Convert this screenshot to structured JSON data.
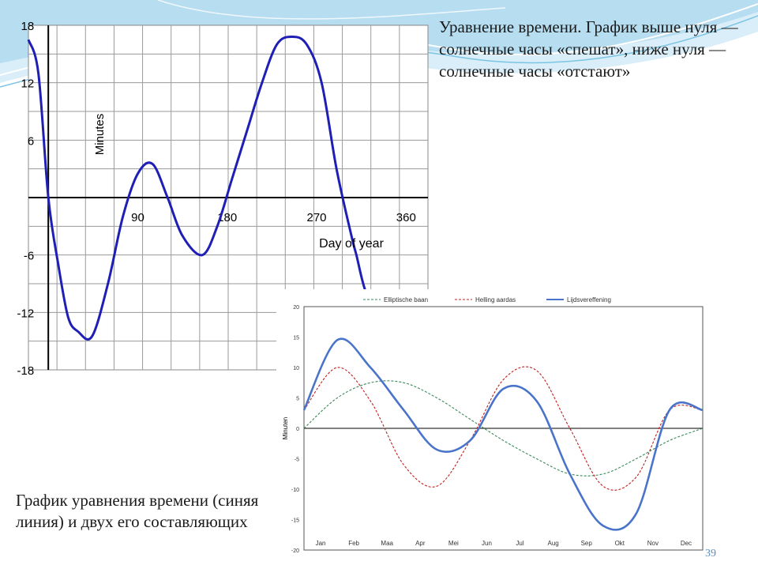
{
  "slide": {
    "caption_top": "Уравнение времени. График выше нуля — солнечные часы «спешат», ниже нуля — солнечные часы «отстают»",
    "caption_bottom": "График уравнения времени (синяя линия) и двух его составляющих",
    "slide_number": "39",
    "colors": {
      "wave_light": "#bfe3f2",
      "wave_mid": "#7cc4e4",
      "accent_blue": "#5a8fbf"
    }
  },
  "chart_data": [
    {
      "type": "line",
      "title": "",
      "xlabel": "Day of year",
      "ylabel": "Minutes",
      "xlim": [
        -20,
        382
      ],
      "ylim": [
        -18,
        18
      ],
      "x_ticks": [
        90,
        180,
        270,
        360
      ],
      "x_tick_labels": [
        "90",
        "180",
        "270",
        "360"
      ],
      "y_ticks": [
        18,
        12,
        6,
        -6,
        -12,
        -18
      ],
      "y_tick_labels": [
        "18",
        "12",
        "6",
        "-6",
        "-12",
        "-18"
      ],
      "grid": true,
      "line_color": "#1f1fb5",
      "series": [
        {
          "name": "",
          "x": [
            -20,
            -10,
            0,
            10,
            20,
            30,
            44,
            60,
            75,
            90,
            105,
            120,
            135,
            155,
            170,
            185,
            200,
            215,
            230,
            245,
            260,
            275,
            290,
            305,
            310,
            320,
            335,
            350,
            362,
            375
          ],
          "y": [
            16.5,
            13,
            0,
            -7,
            -12.5,
            -14,
            -14.5,
            -9,
            -2,
            2.5,
            3.5,
            0,
            -4,
            -6,
            -3,
            2,
            7,
            12,
            16,
            16.8,
            16,
            12,
            3,
            -4,
            -6,
            -10,
            -12,
            -13.5,
            -14,
            -13
          ]
        }
      ]
    },
    {
      "type": "line",
      "title": "",
      "xlabel": "",
      "ylabel": "Minuten",
      "ylim": [
        -20,
        20
      ],
      "y_ticks": [
        20,
        15,
        10,
        5,
        0,
        -5,
        -10,
        -15,
        -20
      ],
      "y_tick_labels": [
        "20",
        "15",
        "10",
        "5",
        "0",
        "-5",
        "-10",
        "-15",
        "-20"
      ],
      "categories": [
        "Jan",
        "Feb",
        "Maa",
        "Apr",
        "Mei",
        "Jun",
        "Jul",
        "Aug",
        "Sep",
        "Okt",
        "Nov",
        "Dec"
      ],
      "legend_position": "top",
      "grid": false,
      "series": [
        {
          "name": "Elliptische baan",
          "color": "#3a8a5a",
          "style": "dashed",
          "x": [
            0,
            1,
            2,
            3,
            4,
            5,
            6,
            7,
            8,
            9,
            10,
            11,
            12
          ],
          "y": [
            0,
            5,
            7.5,
            7.5,
            5,
            1.5,
            -2,
            -5,
            -7.5,
            -7.5,
            -5,
            -2,
            0
          ]
        },
        {
          "name": "Helling aardas",
          "color": "#c02020",
          "style": "dashed",
          "x": [
            0,
            1,
            2,
            3,
            4,
            5,
            6,
            7,
            8,
            9,
            10,
            11,
            12
          ],
          "y": [
            3,
            10,
            4.5,
            -6,
            -9.5,
            -2,
            8,
            9.5,
            0,
            -9.5,
            -8,
            3,
            3
          ]
        },
        {
          "name": "Lijdsvereffening",
          "color": "#4a74c9",
          "style": "solid",
          "x": [
            0,
            1,
            2,
            3,
            4,
            5,
            6,
            7,
            8,
            9,
            10,
            11,
            12
          ],
          "y": [
            3,
            14.5,
            10,
            3,
            -3.5,
            -2,
            6.5,
            4.5,
            -7.5,
            -16,
            -14,
            3,
            3
          ]
        }
      ]
    }
  ]
}
